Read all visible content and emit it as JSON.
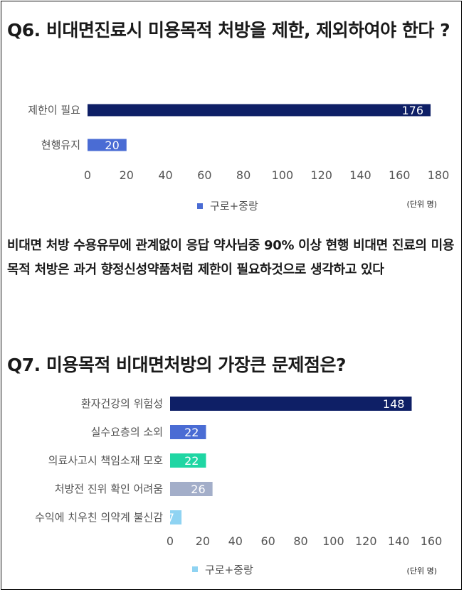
{
  "q6": {
    "title": "Q6. 비대면진료시 미용목적 처방을 제한, 제외하여야 한다 ?",
    "legend": "구로+중랑",
    "unit": "(단위 명)",
    "colors": {
      "legend": "#4a6cd4"
    }
  },
  "description": "비대면 처방 수용유무에 관계없이 응답 약사님중 90% 이상 현행 비대면 진료의 미용목적 처방은 과거 향정신성약품처럼 제한이 필요하것으로 생각하고 있다",
  "q7": {
    "title": "Q7. 미용목적 비대면처방의 가장큰 문제점은?",
    "legend": "구로+중랑",
    "unit": "(단위 명)",
    "colors": {
      "legend": "#8fd3f2"
    }
  },
  "chart_data": [
    {
      "type": "bar",
      "orientation": "horizontal",
      "categories": [
        "제한이 필요",
        "현행유지"
      ],
      "values": [
        176,
        20
      ],
      "colors": [
        "#0e1f66",
        "#4a6cd4"
      ],
      "xlim": [
        0,
        180
      ],
      "xticks": [
        0,
        20,
        40,
        60,
        80,
        100,
        120,
        140,
        160,
        180
      ],
      "series": [
        {
          "name": "구로+중랑",
          "values": [
            176,
            20
          ]
        }
      ],
      "legend_position": "bottom",
      "grid": false
    },
    {
      "type": "bar",
      "orientation": "horizontal",
      "categories": [
        "환자건강의 위험성",
        "실수요층의 소외",
        "의료사고시 책임소재 모호",
        "처방전 진위 확인 어려움",
        "수익에 치우친 의약계 불신감"
      ],
      "values": [
        148,
        22,
        22,
        26,
        7
      ],
      "colors": [
        "#0e1f66",
        "#4a6cd4",
        "#1fd6a3",
        "#a3aec9",
        "#8fd3f2"
      ],
      "xlim": [
        0,
        160
      ],
      "xticks": [
        0,
        20,
        40,
        60,
        80,
        100,
        120,
        140,
        160
      ],
      "series": [
        {
          "name": "구로+중랑",
          "values": [
            148,
            22,
            22,
            26,
            7
          ]
        }
      ],
      "legend_position": "bottom",
      "grid": false
    }
  ]
}
